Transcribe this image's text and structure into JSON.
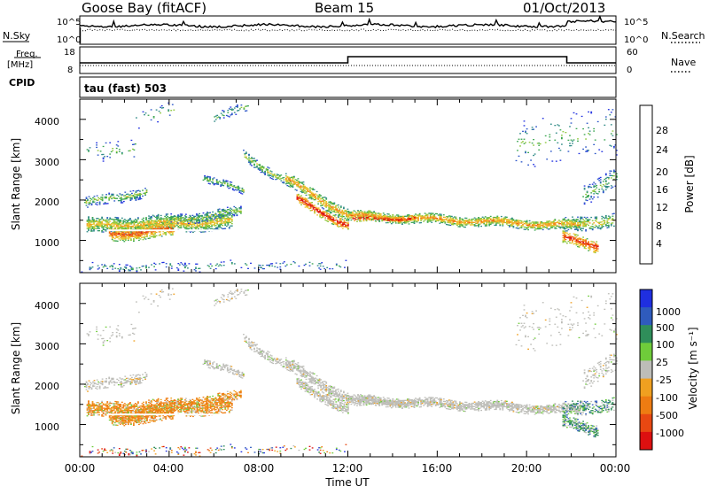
{
  "header": {
    "station": "Goose Bay (fitACF)",
    "beam": "Beam 15",
    "date": "01/Oct/2013"
  },
  "top_panels": {
    "noise": {
      "left_label": "N.Sky",
      "right_label": "N.Search",
      "left_ticks": [
        "10^5",
        "10^0"
      ],
      "right_ticks": [
        "10^5",
        "10^0"
      ]
    },
    "freq": {
      "left_label_1": "Freq.",
      "left_label_2": "[MHz]",
      "right_label": "Nave",
      "left_ticks": [
        "18",
        "8"
      ],
      "right_ticks": [
        "60",
        "0"
      ]
    },
    "cpid": {
      "label": "CPID",
      "value": "tau (fast) 503"
    }
  },
  "colors": {
    "power_scale": [
      "#1f2fe0",
      "#2a55c8",
      "#2f8a86",
      "#3aa650",
      "#8cc63a",
      "#e8c630",
      "#f39a1c",
      "#ee5a12",
      "#dd1010"
    ],
    "velocity_scale": [
      "#1f2fe0",
      "#2f5bbd",
      "#2f8e5a",
      "#6fcc3a",
      "#bdbdb8",
      "#f0a020",
      "#ee7c12",
      "#e84812",
      "#dd1010"
    ]
  },
  "chart_data": [
    {
      "type": "heatmap",
      "title": "",
      "xlabel": "Time UT",
      "ylabel": "Slant Range [km]",
      "x_ticks": [
        "00:00",
        "04:00",
        "08:00",
        "12:00",
        "16:00",
        "20:00",
        "00:00"
      ],
      "y_ticks": [
        "1000",
        "2000",
        "3000",
        "4000"
      ],
      "ylim": [
        200,
        4500
      ],
      "colorbar_label": "Power [dB]",
      "colorbar_ticks": [
        "4",
        "8",
        "12",
        "16",
        "20",
        "24",
        "28"
      ],
      "clim": [
        0,
        30
      ]
    },
    {
      "type": "heatmap",
      "title": "",
      "xlabel": "Time UT",
      "ylabel": "Slant Range [km]",
      "x_ticks": [
        "00:00",
        "04:00",
        "08:00",
        "12:00",
        "16:00",
        "20:00",
        "00:00"
      ],
      "y_ticks": [
        "1000",
        "2000",
        "3000",
        "4000"
      ],
      "ylim": [
        200,
        4500
      ],
      "colorbar_label": "Velocity [m s⁻¹]",
      "colorbar_ticks": [
        "1000",
        "500",
        "100",
        "25",
        "-25",
        "-100",
        "-500",
        "-1000"
      ]
    }
  ]
}
